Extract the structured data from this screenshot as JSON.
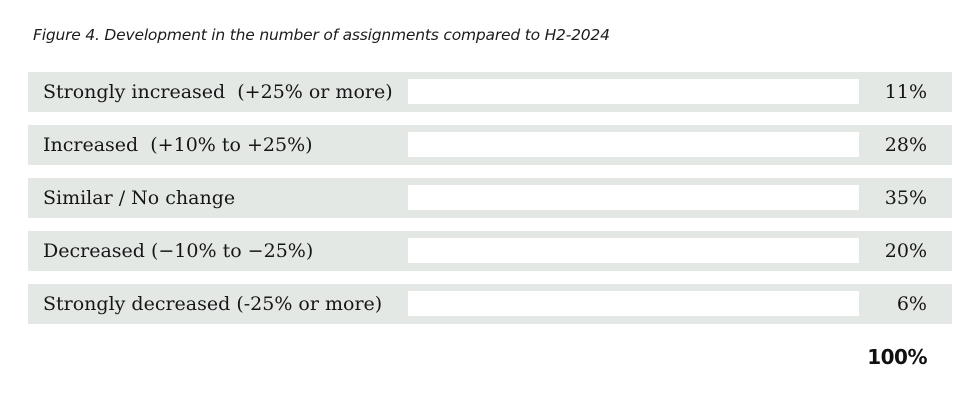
{
  "figure": {
    "title": "Figure 4. Development in the number of assignments compared to H2-2024"
  },
  "chart_data": {
    "type": "bar",
    "orientation": "horizontal",
    "title": "Figure 4. Development in the number of assignments compared to H2-2024",
    "categories": [
      "Strongly increased  (+25% or more)",
      "Increased  (+10% to +25%)",
      "Similar / No change",
      "Decreased (−10% to −25%)",
      "Strongly decreased (-25% or more)"
    ],
    "values": [
      11,
      28,
      35,
      20,
      6
    ],
    "value_labels": [
      "11%",
      "28%",
      "35%",
      "20%",
      "6%"
    ],
    "total_label": "100%",
    "xlim": [
      0,
      100
    ],
    "grid": false,
    "legend": false,
    "colors": {
      "bar_fill": "#a9b9bc",
      "bar_track": "#ffffff",
      "row_background": "#e4e8e5",
      "text": "#1a1a1a",
      "page_background": "#ffffff"
    }
  }
}
